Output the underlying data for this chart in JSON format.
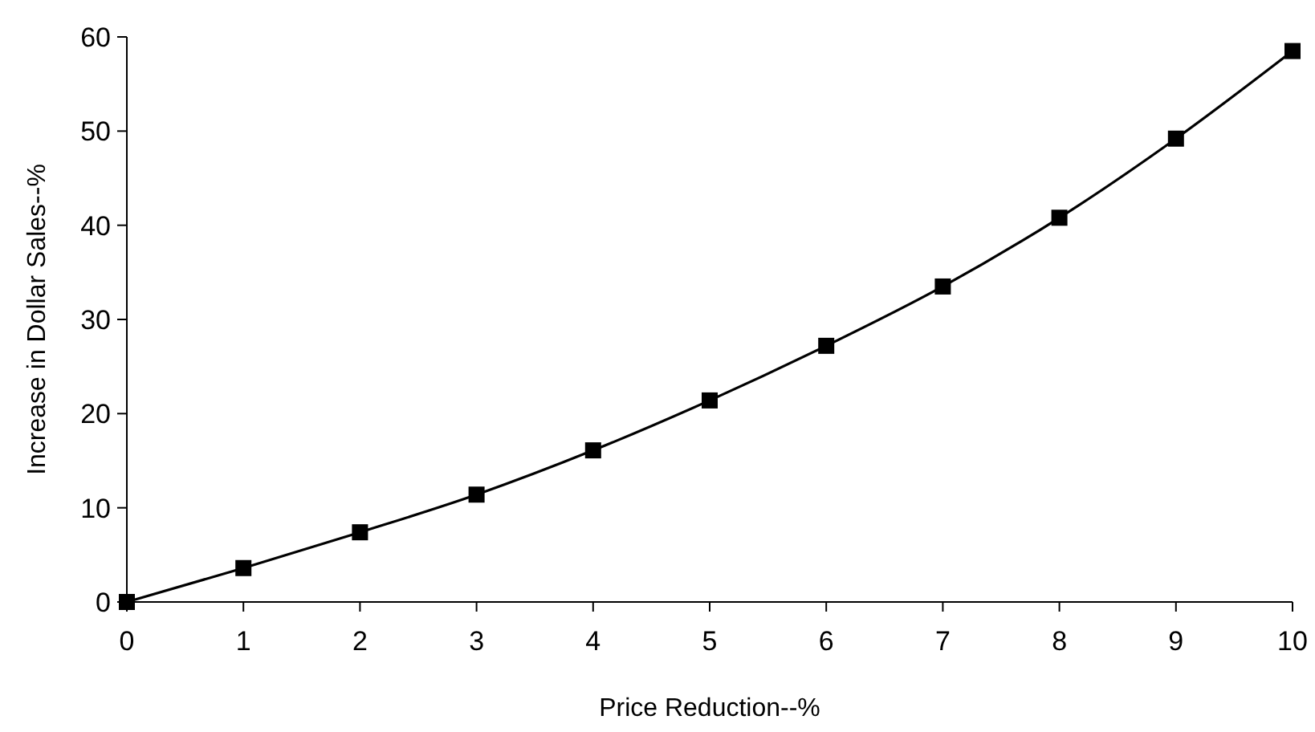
{
  "chart_data": {
    "type": "line",
    "xlabel": "Price Reduction--%",
    "ylabel": "Increase in Dollar Sales--%",
    "x": [
      0,
      1,
      2,
      3,
      4,
      5,
      6,
      7,
      8,
      9,
      10
    ],
    "series": [
      {
        "color": "#000000",
        "values": [
          0,
          3.6,
          7.4,
          11.4,
          16.1,
          21.4,
          27.2,
          33.5,
          40.8,
          49.2,
          58.5
        ]
      }
    ],
    "xlim": [
      0,
      10
    ],
    "xticks": [
      0,
      1,
      2,
      3,
      4,
      5,
      6,
      7,
      8,
      9,
      10
    ],
    "ylim": [
      0,
      60
    ],
    "yticks": [
      0,
      10,
      20,
      30,
      40,
      50,
      60
    ],
    "marker": "square",
    "line_style": "solid"
  }
}
